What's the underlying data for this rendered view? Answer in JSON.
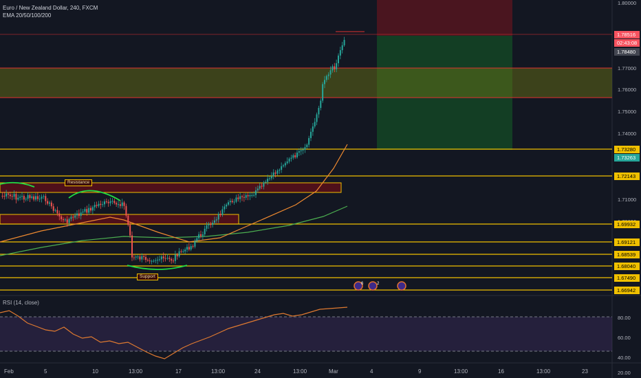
{
  "header": {
    "title": "Euro / New Zealand Dollar, 240, FXCM",
    "indicator": "EMA 20/50/100/200"
  },
  "rsi": {
    "label": "RSI (14, close)",
    "ticks": [
      "80.00",
      "60.00",
      "40.00",
      "20.00"
    ]
  },
  "price_axis": {
    "ticks": [
      "1.80000",
      "1.77000",
      "1.76000",
      "1.75000",
      "1.74000",
      "1.71000",
      "1.70000"
    ],
    "boxes": [
      {
        "text": "1.78516",
        "color": "#f7525f",
        "fg": "#ffffff"
      },
      {
        "text": "02:43:08",
        "color": "#f7525f",
        "fg": "#ffffff"
      },
      {
        "text": "1.78480",
        "color": "#434651",
        "fg": "#ffffff"
      },
      {
        "text": "1.73280",
        "color": "#f0c000",
        "fg": "#000000"
      },
      {
        "text": "1.73263",
        "color": "#26a69a",
        "fg": "#ffffff"
      },
      {
        "text": "1.72143",
        "color": "#f0c000",
        "fg": "#000000"
      },
      {
        "text": "1.69932",
        "color": "#f0c000",
        "fg": "#000000"
      },
      {
        "text": "1.69121",
        "color": "#f0c000",
        "fg": "#000000"
      },
      {
        "text": "1.68539",
        "color": "#f0c000",
        "fg": "#000000"
      },
      {
        "text": "1.68040",
        "color": "#f0c000",
        "fg": "#000000"
      },
      {
        "text": "1.67490",
        "color": "#f0c000",
        "fg": "#000000"
      },
      {
        "text": "1.66942",
        "color": "#f0c000",
        "fg": "#000000"
      }
    ]
  },
  "time_axis": [
    "Feb",
    "5",
    "10",
    "13:00",
    "17",
    "13:00",
    "24",
    "13:00",
    "Mar",
    "4",
    "9",
    "13:00",
    "16",
    "13:00",
    "23"
  ],
  "annotations": {
    "resistance": "Resistance",
    "support": "Support"
  },
  "events": [
    "6",
    "2"
  ],
  "colors": {
    "up": "#26a69a",
    "down": "#ef5350",
    "level": "#f0c000",
    "bg": "#131722"
  }
}
